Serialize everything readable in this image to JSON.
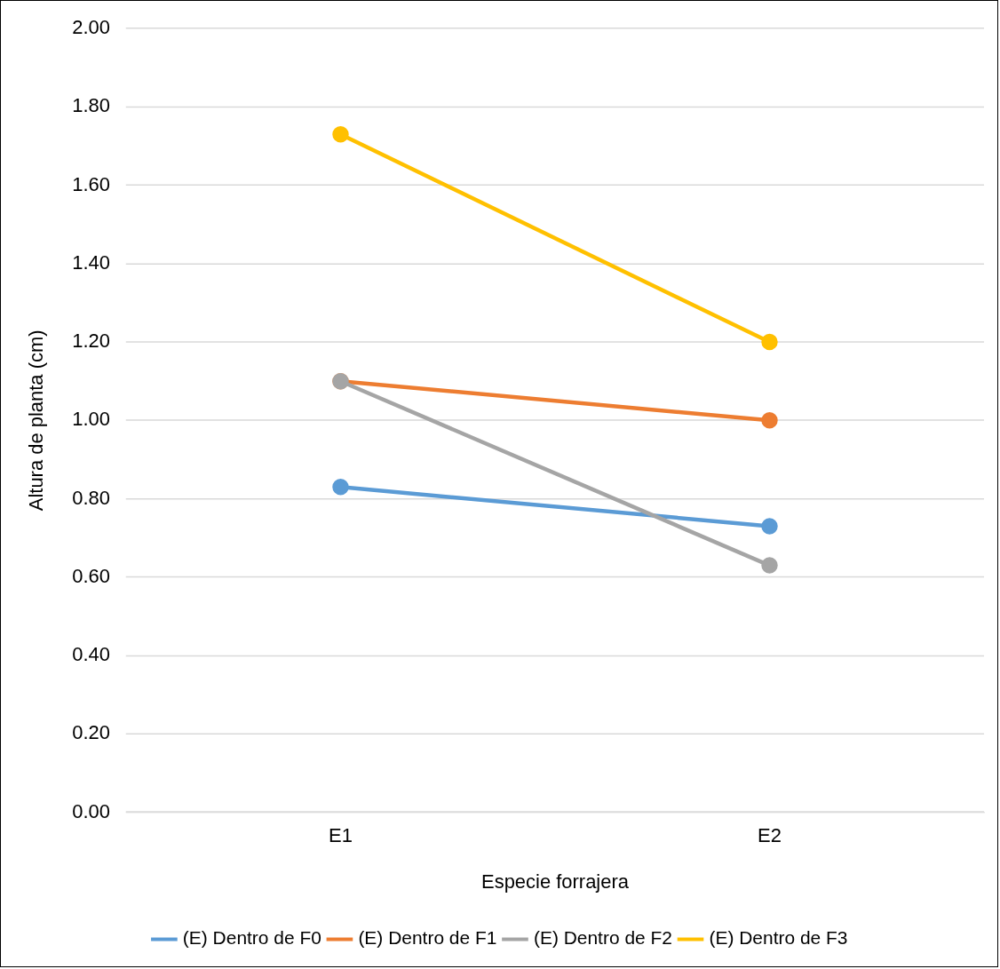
{
  "chart_data": {
    "type": "line",
    "xlabel": "Especie forrajera",
    "ylabel": "Altura de planta (cm)",
    "categories": [
      "E1",
      "E2"
    ],
    "series": [
      {
        "name": "(E) Dentro de F0",
        "color": "#5b9bd5",
        "values": [
          0.83,
          0.73
        ]
      },
      {
        "name": "(E) Dentro de F1",
        "color": "#ed7d31",
        "values": [
          1.1,
          1.0
        ]
      },
      {
        "name": "(E) Dentro de F2",
        "color": "#a5a5a5",
        "values": [
          1.1,
          0.63
        ]
      },
      {
        "name": "(E) Dentro de F3",
        "color": "#ffc000",
        "values": [
          1.73,
          1.2
        ]
      }
    ],
    "ylim": [
      0,
      2
    ],
    "yticks": [
      {
        "value": 0,
        "label": "0.00"
      },
      {
        "value": 0.2,
        "label": "0.20"
      },
      {
        "value": 0.4,
        "label": "0.40"
      },
      {
        "value": 0.6,
        "label": "0.60"
      },
      {
        "value": 0.8,
        "label": "0.80"
      },
      {
        "value": 1,
        "label": "1.00"
      },
      {
        "value": 1.2,
        "label": "1.20"
      },
      {
        "value": 1.4,
        "label": "1.40"
      },
      {
        "value": 1.6,
        "label": "1.60"
      },
      {
        "value": 1.8,
        "label": "1.80"
      },
      {
        "value": 2,
        "label": "2.00"
      }
    ],
    "grid": "y",
    "legend": "bottom",
    "marker": "circle",
    "line_style": "solid"
  }
}
